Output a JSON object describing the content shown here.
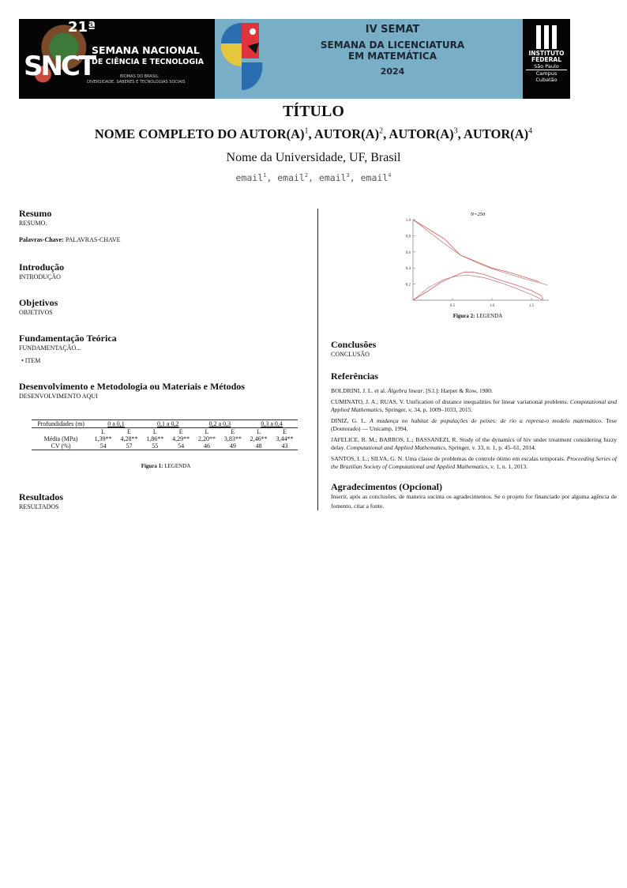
{
  "banner": {
    "snct_edition": "21ª",
    "snct_short": "SNCT",
    "snct_title1": "SEMANA NACIONAL",
    "snct_title2": "DE CIÊNCIA E TECNOLOGIA",
    "snct_theme1": "BIOMAS DO BRASIL:",
    "snct_theme2": "DIVERSIDADE, SABERES E TECNOLOGIAS SOCIAIS",
    "semat1": "IV SEMAT",
    "semat2": "SEMANA DA LICENCIATURA",
    "semat3": "EM MATEMÁTICA",
    "semat_year": "2024",
    "if1": "INSTITUTO",
    "if2": "FEDERAL",
    "if3": "São Paulo",
    "if4": "Campus",
    "if5": "Cubatão"
  },
  "header": {
    "title": "TÍTULO",
    "authors": [
      "NOME COMPLETO DO AUTOR(A)",
      "AUTOR(A)",
      "AUTOR(A)",
      "AUTOR(A)"
    ],
    "sup": [
      "1",
      "2",
      "3",
      "4"
    ],
    "university": "Nome da Universidade, UF, Brasil",
    "emails": [
      "email",
      "email",
      "email",
      "email"
    ]
  },
  "left": {
    "resumo_h": "Resumo",
    "resumo": "RESUMO.",
    "kw_label": "Palavras-Chave:",
    "kw": "PALAVRAS-CHAVE",
    "intro_h": "Introdução",
    "intro": "INTRODUÇÃO",
    "obj_h": "Objetivos",
    "obj": "OBJETIVOS",
    "fund_h": "Fundamentação Teórica",
    "fund": "FUNDAMENTAÇÃO...",
    "item": "• ITEM",
    "dev_h": "Desenvolvimento e Metodologia ou Materiais e Métodos",
    "dev": "DESENVOLVIMENTO AQUI",
    "fig1_label": "Figura 1:",
    "fig1": "LEGENDA",
    "res_h": "Resultados",
    "res": "RESULTADOS"
  },
  "table": {
    "header": [
      "Profundidades (m)",
      "0 a 0,1",
      "0,1 a 0,2",
      "0,2 a 0,3",
      "0,3 a 0,4"
    ],
    "sub": [
      "",
      "L",
      "E",
      "L",
      "E",
      "L",
      "E",
      "L",
      "E"
    ],
    "rows": [
      [
        "Média (MPa)",
        "1,39**",
        "4,28**",
        "1,86**",
        "4,29**",
        "2,20**",
        "3,83**",
        "2,46**",
        "3,44**"
      ],
      [
        "CV (%)",
        "54",
        "57",
        "55",
        "54",
        "46",
        "49",
        "48",
        "43"
      ]
    ]
  },
  "chart_data": {
    "type": "line",
    "title": "N=250",
    "xlim": [
      0,
      1.7
    ],
    "ylim": [
      0,
      1.0
    ],
    "xticks": [
      "0.5",
      "1.0",
      "1.5"
    ],
    "yticks": [
      "0.2",
      "0.4",
      "0.6",
      "0.8",
      "1.0"
    ],
    "color": "#d06060",
    "series": [
      {
        "x": [
          0,
          0.2,
          0.4,
          0.6,
          0.8,
          1.0,
          1.2,
          1.4,
          1.7
        ],
        "y": [
          1.0,
          0.85,
          0.7,
          0.56,
          0.47,
          0.39,
          0.33,
          0.27,
          0.19
        ]
      },
      {
        "x": [
          0,
          0.2,
          0.4,
          0.5,
          0.6,
          0.8,
          1.0,
          1.2,
          1.4,
          1.6
        ],
        "y": [
          1.0,
          0.88,
          0.76,
          0.66,
          0.56,
          0.48,
          0.4,
          0.35,
          0.29,
          0.23
        ]
      },
      {
        "x": [
          0,
          0.2,
          0.4,
          0.55,
          0.7,
          0.9,
          1.1,
          1.3,
          1.5,
          1.65
        ],
        "y": [
          0,
          0.16,
          0.26,
          0.3,
          0.31,
          0.28,
          0.22,
          0.15,
          0.07,
          0
        ]
      },
      {
        "x": [
          0,
          0.2,
          0.35,
          0.5,
          0.65,
          0.75,
          0.9,
          1.1,
          1.3,
          1.5,
          1.62,
          1.65
        ],
        "y": [
          0,
          0.12,
          0.22,
          0.29,
          0.35,
          0.35,
          0.32,
          0.25,
          0.19,
          0.12,
          0.06,
          0.01
        ]
      }
    ]
  },
  "right": {
    "fig2_label": "Figura 2:",
    "fig2": "LEGENDA",
    "conc_h": "Conclusões",
    "conc": "CONCLUSÃO",
    "ref_h": "Referências",
    "refs": [
      {
        "a": "BOLDRINI, J. L. et al. ",
        "i": "Álgebra linear",
        "b": ". [S.l.]: Harper & Row, 1980."
      },
      {
        "a": "CUMINATO, J. A.; RUAS, V. Unification of distance inequalities for linear variational problems. ",
        "i": "Computational and Applied Mathematics",
        "b": ", Springer, v. 34, p. 1009–1033, 2015."
      },
      {
        "a": "DINIZ, G. L. ",
        "i": "A mudança no habitat de populações de peixes: de rio a represa-o modelo matemático",
        "b": ". Tese (Doutorado) — Unicamp, 1994."
      },
      {
        "a": "JAFELICE, R. M.; BARROS, L.; BASSANEZI, R. Study of the dynamics of hiv under treatment considering fuzzy delay. ",
        "i": "Computational and Applied Mathematics",
        "b": ", Springer, v. 33, n. 1, p. 45–61, 2014."
      },
      {
        "a": "SANTOS, I. L.; SILVA, G. N. Uma classe de problemas de controle ótimo em escalas temporais. ",
        "i": "Proceeding Series of the Brazilian Society of Computational and Applied Mathematics",
        "b": ", v. 1, n. 1, 2013."
      }
    ],
    "ack_h": "Agradecimentos (Opcional)",
    "ack": "Inserir, após as conclusões, de maneira sucinta os agradecimentos. Se o projeto for financiado por alguma agência de fomento, citar a fonte."
  }
}
